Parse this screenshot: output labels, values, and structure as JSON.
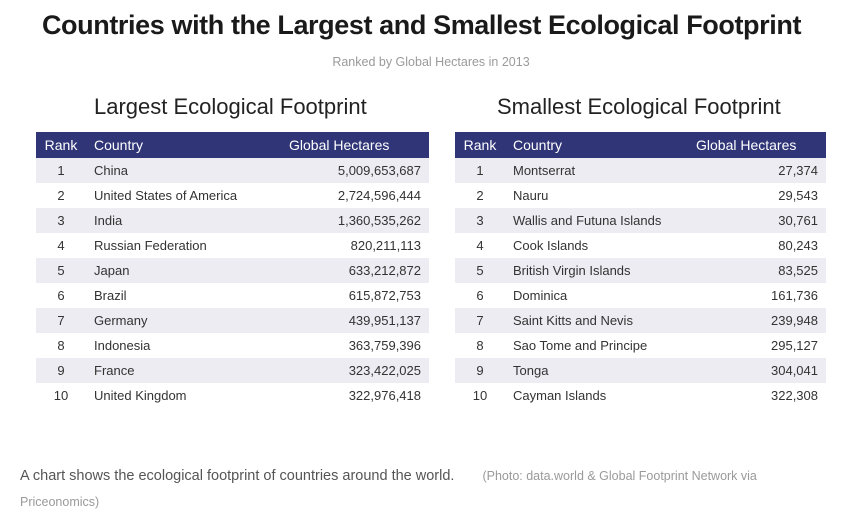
{
  "title": "Countries with the Largest and Smallest Ecological Footprint",
  "subtitle": "Ranked by Global Hectares in 2013",
  "largest": {
    "heading": "Largest Ecological Footprint",
    "columns": [
      "Rank",
      "Country",
      "Global Hectares"
    ],
    "rows": [
      [
        "1",
        "China",
        "5,009,653,687"
      ],
      [
        "2",
        "United States of America",
        "2,724,596,444"
      ],
      [
        "3",
        "India",
        "1,360,535,262"
      ],
      [
        "4",
        "Russian Federation",
        "820,211,113"
      ],
      [
        "5",
        "Japan",
        "633,212,872"
      ],
      [
        "6",
        "Brazil",
        "615,872,753"
      ],
      [
        "7",
        "Germany",
        "439,951,137"
      ],
      [
        "8",
        "Indonesia",
        "363,759,396"
      ],
      [
        "9",
        "France",
        "323,422,025"
      ],
      [
        "10",
        "United Kingdom",
        "322,976,418"
      ]
    ]
  },
  "smallest": {
    "heading": "Smallest Ecological Footprint",
    "columns": [
      "Rank",
      "Country",
      "Global Hectares"
    ],
    "rows": [
      [
        "1",
        "Montserrat",
        "27,374"
      ],
      [
        "2",
        "Nauru",
        "29,543"
      ],
      [
        "3",
        "Wallis and Futuna Islands",
        "30,761"
      ],
      [
        "4",
        "Cook Islands",
        "80,243"
      ],
      [
        "5",
        "British Virgin Islands",
        "83,525"
      ],
      [
        "6",
        "Dominica",
        "161,736"
      ],
      [
        "7",
        "Saint Kitts and Nevis",
        "239,948"
      ],
      [
        "8",
        "Sao Tome and Principe",
        "295,127"
      ],
      [
        "9",
        "Tonga",
        "304,041"
      ],
      [
        "10",
        "Cayman Islands",
        "322,308"
      ]
    ]
  },
  "caption": {
    "text": "A chart shows the ecological footprint of countries around the world.",
    "credit": "(Photo: data.world & Global Footprint Network via Priceonomics)"
  },
  "colors": {
    "header_bg": "#2f3577",
    "row_alt_bg": "#ececf2"
  }
}
